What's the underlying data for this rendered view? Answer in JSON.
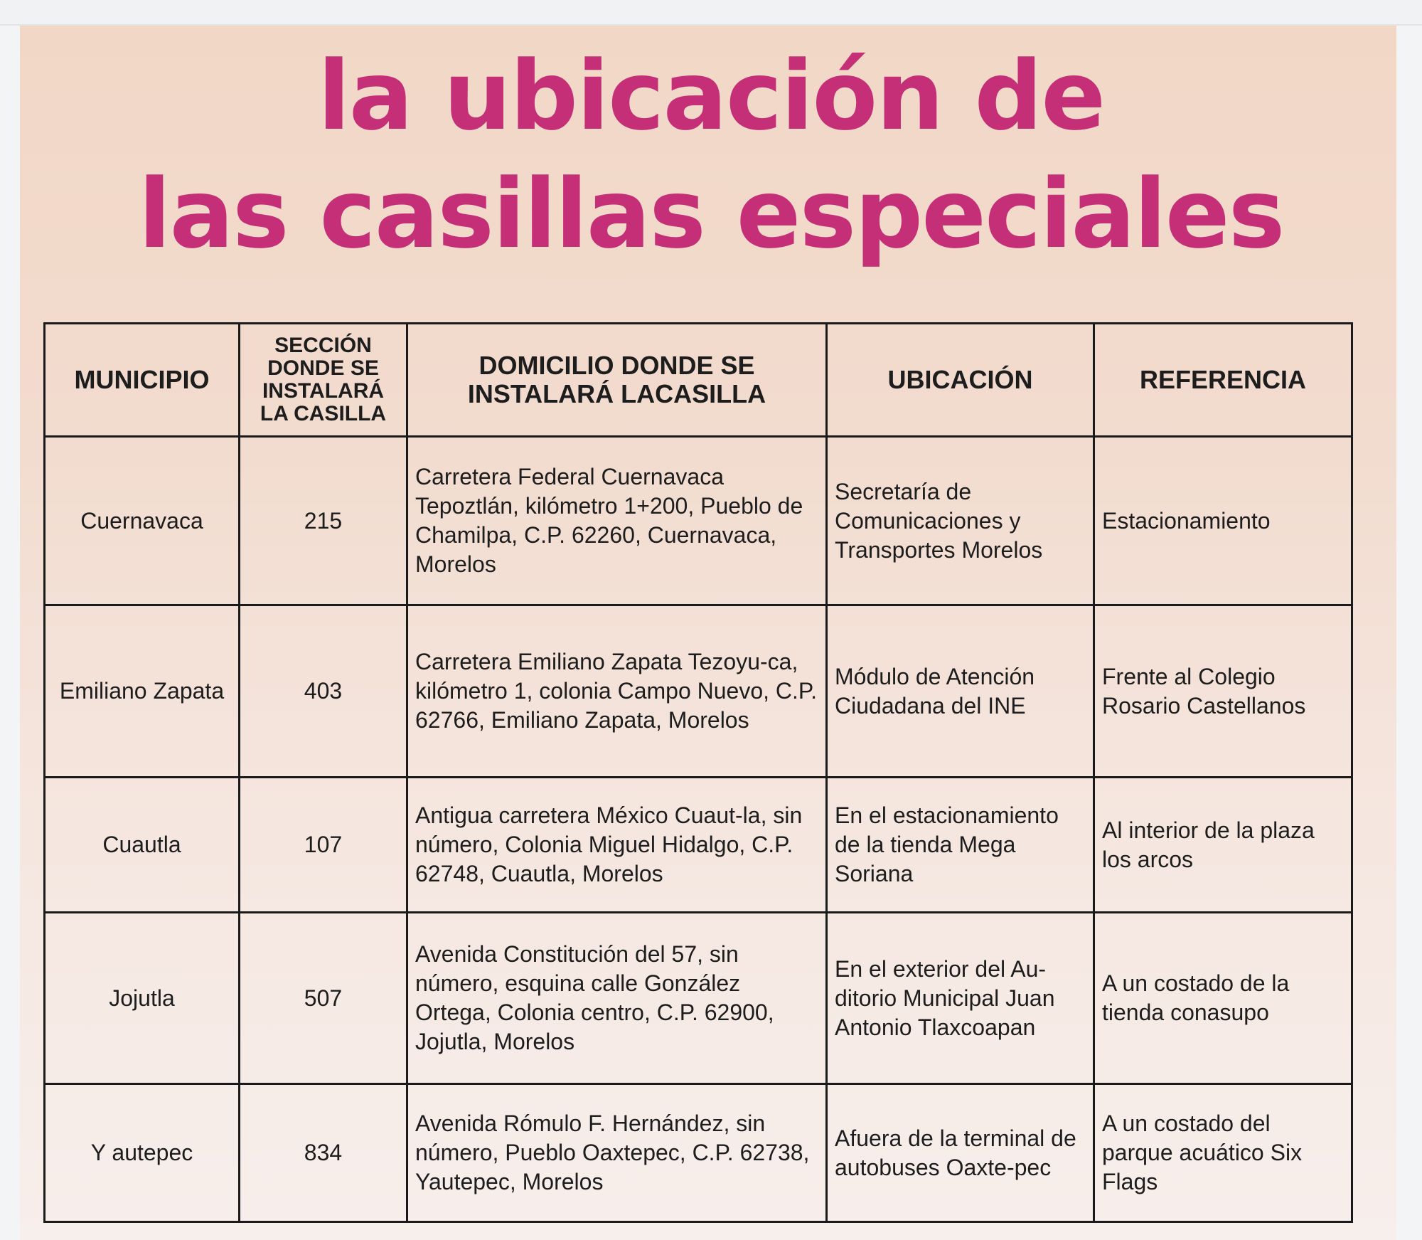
{
  "title": {
    "line1": "la ubicación de",
    "line2": "las casillas especiales"
  },
  "colors": {
    "title": "#c52f78",
    "background": "#f1d7c6",
    "border": "#1a1a1a"
  },
  "table": {
    "headers": [
      "MUNICIPIO",
      "SECCIÓN DONDE SE INSTALARÁ LA CASILLA",
      "DOMICILIO DONDE SE INSTALARÁ LACASILLA",
      "UBICACIÓN",
      "REFERENCIA"
    ],
    "rows": [
      {
        "municipio": "Cuernavaca",
        "seccion": "215",
        "domicilio": "Carretera Federal Cuernavaca Tepoztlán, kilómetro 1+200, Pueblo de Chamilpa, C.P. 62260, Cuernavaca, Morelos",
        "ubicacion": "Secretaría de Comunicaciones y Transportes Morelos",
        "referencia": "Estacionamiento"
      },
      {
        "municipio": "Emiliano Zapata",
        "seccion": "403",
        "domicilio": "Carretera Emiliano Zapata Tezoyu-ca, kilómetro 1, colonia Campo Nuevo, C.P. 62766, Emiliano Zapata, Morelos",
        "ubicacion": "Módulo de Atención Ciudadana del INE",
        "referencia": "Frente al Colegio Rosario Castellanos"
      },
      {
        "municipio": "Cuautla",
        "seccion": "107",
        "domicilio": "Antigua carretera México Cuaut-la, sin número, Colonia Miguel Hidalgo, C.P. 62748, Cuautla, Morelos",
        "ubicacion": "En el estacionamiento de la tienda Mega Soriana",
        "referencia": "Al interior de la plaza los arcos"
      },
      {
        "municipio": "Jojutla",
        "seccion": "507",
        "domicilio": "Avenida Constitución del 57, sin número, esquina calle González Ortega, Colonia centro, C.P. 62900, Jojutla, Morelos",
        "ubicacion": "En el exterior del Au-ditorio Municipal Juan Antonio Tlaxcoapan",
        "referencia": "A un costado de la tienda conasupo"
      },
      {
        "municipio": "Y autepec",
        "seccion": "834",
        "domicilio": "Avenida Rómulo F. Hernández, sin número, Pueblo Oaxtepec, C.P. 62738, Yautepec, Morelos",
        "ubicacion": "Afuera de la terminal de autobuses Oaxte-pec",
        "referencia": "A un costado del parque acuático Six Flags"
      }
    ]
  }
}
